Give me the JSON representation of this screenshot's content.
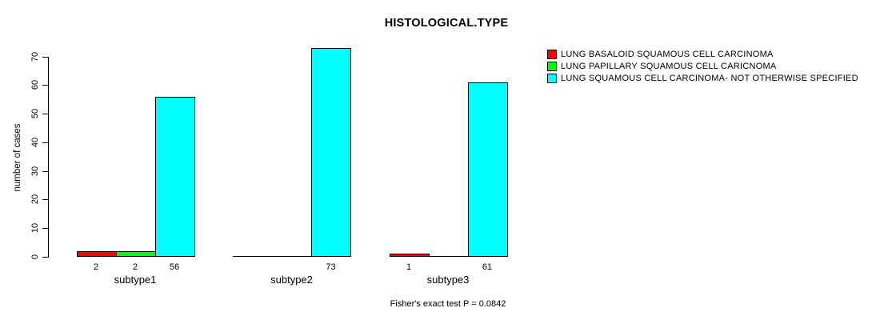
{
  "chart_data": {
    "type": "bar",
    "title": "HISTOLOGICAL.TYPE",
    "ylabel": "number of cases",
    "xlabel": "",
    "ylim": [
      0,
      70
    ],
    "yticks": [
      0,
      10,
      20,
      30,
      40,
      50,
      60,
      70
    ],
    "grid": false,
    "legend_position": "top-right",
    "categories": [
      "subtype1",
      "subtype2",
      "subtype3"
    ],
    "series": [
      {
        "name": "LUNG BASALOID SQUAMOUS CELL CARCINOMA",
        "color": "#ff0000",
        "values": [
          2,
          0,
          1
        ]
      },
      {
        "name": "LUNG PAPILLARY SQUAMOUS CELL CARICNOMA",
        "color": "#00ff00",
        "values": [
          2,
          0,
          0
        ]
      },
      {
        "name": "LUNG SQUAMOUS CELL CARCINOMA- NOT OTHERWISE SPECIFIED",
        "color": "#00ffff",
        "values": [
          56,
          73,
          61
        ]
      }
    ],
    "bar_labels": {
      "subtype1": [
        2,
        2,
        56
      ],
      "subtype2": [
        null,
        null,
        73
      ],
      "subtype3": [
        1,
        null,
        61
      ]
    },
    "footnote": "Fisher's exact test P = 0.0842"
  }
}
